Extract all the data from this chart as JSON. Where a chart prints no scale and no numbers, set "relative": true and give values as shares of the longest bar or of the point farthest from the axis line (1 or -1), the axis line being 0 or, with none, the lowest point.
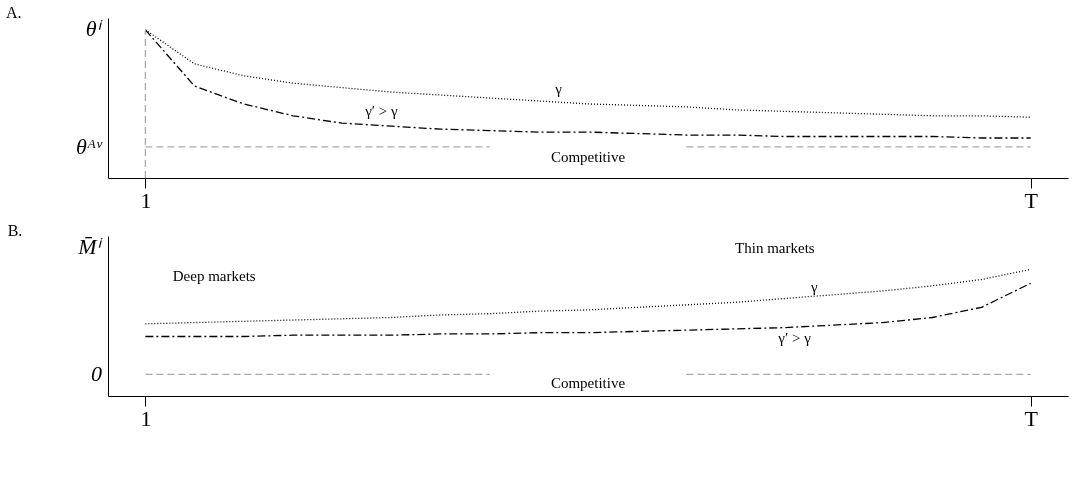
{
  "chart_data": [
    {
      "type": "line",
      "title": "A.",
      "ylabel": "θⁱ",
      "relative": true,
      "grid": false,
      "categories": [
        "1",
        null,
        null,
        null,
        null,
        null,
        null,
        null,
        null,
        null,
        null,
        null,
        null,
        null,
        null,
        null,
        null,
        null,
        "T"
      ],
      "series": [
        {
          "color": "#000000",
          "line_style": "dotted",
          "values": [
            1,
            0.77,
            0.69,
            0.64,
            0.61,
            0.58,
            0.56,
            0.54,
            0.52,
            0.5,
            0.49,
            0.48,
            0.46,
            0.45,
            0.44,
            0.43,
            0.42,
            0.42,
            0.41
          ]
        },
        {
          "color": "#000000",
          "line_style": "dashdot",
          "values": [
            1,
            0.62,
            0.5,
            0.42,
            0.37,
            0.35,
            0.33,
            0.32,
            0.31,
            0.31,
            0.3,
            0.29,
            0.29,
            0.28,
            0.28,
            0.28,
            0.28,
            0.27,
            0.27
          ]
        },
        {
          "color": "#aaaaaa",
          "line_style": "dashed",
          "values": [
            0.21,
            0.21,
            0.21,
            0.21,
            0.21,
            0.21,
            0.21,
            0.21,
            null,
            null,
            null,
            0.21,
            0.21,
            0.21,
            0.21,
            0.21,
            0.21,
            0.21,
            0.21
          ]
        }
      ],
      "ref_lines": [
        {
          "axis": "x",
          "value": "1",
          "color": "#aaaaaa",
          "line_style": "dashed"
        }
      ],
      "annotations": [
        "θᴬᵛ",
        "γ",
        "γ′ > γ",
        "Competitive"
      ]
    },
    {
      "type": "line",
      "title": "B.",
      "ylabel": "M̄ⁱ",
      "relative": true,
      "grid": false,
      "categories": [
        "1",
        null,
        null,
        null,
        null,
        null,
        null,
        null,
        null,
        null,
        null,
        null,
        null,
        null,
        null,
        null,
        null,
        null,
        "T"
      ],
      "series": [
        {
          "color": "#000000",
          "line_style": "dotted",
          "values": [
            0.57,
            0.58,
            0.59,
            0.6,
            0.61,
            0.62,
            0.64,
            0.65,
            0.67,
            0.68,
            0.7,
            0.72,
            0.74,
            0.77,
            0.8,
            0.83,
            0.87,
            0.92,
            1
          ]
        },
        {
          "color": "#000000",
          "line_style": "dashdot",
          "values": [
            0.47,
            0.47,
            0.47,
            0.48,
            0.48,
            0.48,
            0.49,
            0.49,
            0.5,
            0.5,
            0.51,
            0.52,
            0.53,
            0.54,
            0.56,
            0.58,
            0.62,
            0.7,
            0.89
          ]
        },
        {
          "color": "#aaaaaa",
          "line_style": "dashed",
          "values": [
            0.17,
            0.17,
            0.17,
            0.17,
            0.17,
            0.17,
            0.17,
            0.17,
            null,
            null,
            null,
            0.17,
            0.17,
            0.17,
            0.17,
            0.17,
            0.17,
            0.17,
            0.17
          ]
        }
      ],
      "annotations": [
        "0",
        "γ",
        "γ′ > γ",
        "Competitive",
        "Deep markets",
        "Thin markets"
      ]
    }
  ]
}
